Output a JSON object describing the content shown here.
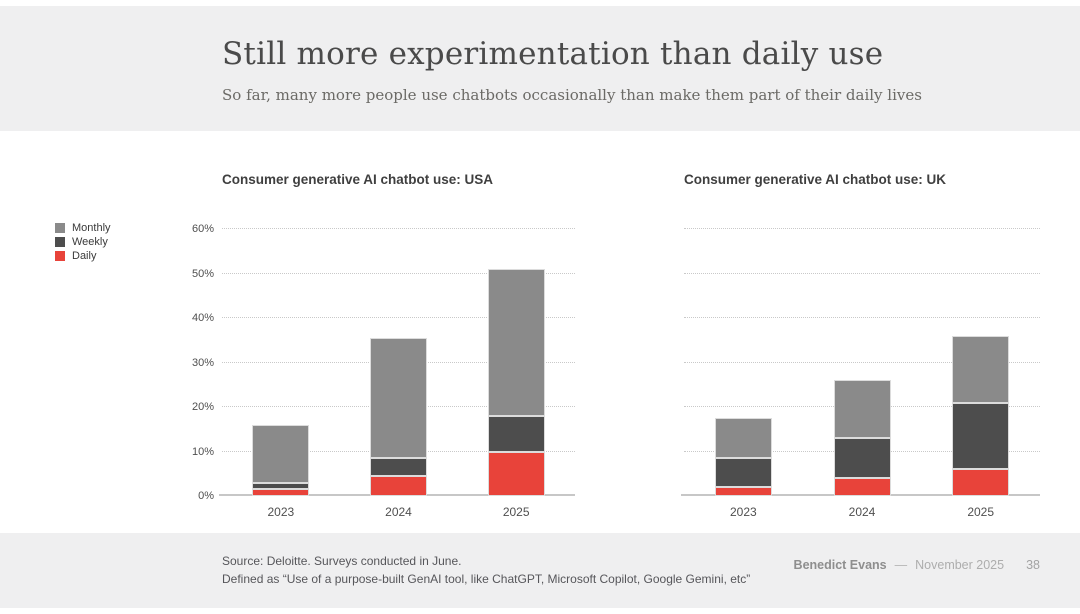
{
  "header": {
    "title": "Still more experimentation than daily use",
    "subtitle": "So far, many more people use chatbots occasionally than make them part of their daily lives"
  },
  "legend": {
    "items": [
      {
        "label": "Monthly",
        "color": "#8a8a8a"
      },
      {
        "label": "Weekly",
        "color": "#4d4d4d"
      },
      {
        "label": "Daily",
        "color": "#e8433a"
      }
    ]
  },
  "chart_data": [
    {
      "id": "usa",
      "type": "bar",
      "stacked": true,
      "title": "Consumer generative AI chatbot use: USA",
      "categories": [
        "2023",
        "2024",
        "2025"
      ],
      "series": [
        {
          "name": "Daily",
          "color": "#e8433a",
          "values": [
            1.5,
            4.5,
            10
          ]
        },
        {
          "name": "Weekly",
          "color": "#4d4d4d",
          "values": [
            1.5,
            4,
            8
          ]
        },
        {
          "name": "Monthly",
          "color": "#8a8a8a",
          "values": [
            13,
            27,
            33
          ]
        }
      ],
      "totals": [
        16,
        35.5,
        51
      ],
      "ylim": [
        0,
        60
      ],
      "yticks": [
        0,
        10,
        20,
        30,
        40,
        50,
        60
      ],
      "y_unit": "%",
      "show_y_labels": true,
      "grid": "horizontal-dotted",
      "legend_position": "left-of-chart"
    },
    {
      "id": "uk",
      "type": "bar",
      "stacked": true,
      "title": "Consumer generative AI chatbot use: UK",
      "categories": [
        "2023",
        "2024",
        "2025"
      ],
      "series": [
        {
          "name": "Daily",
          "color": "#e8433a",
          "values": [
            2,
            4,
            6
          ]
        },
        {
          "name": "Weekly",
          "color": "#4d4d4d",
          "values": [
            6.5,
            9,
            15
          ]
        },
        {
          "name": "Monthly",
          "color": "#8a8a8a",
          "values": [
            9,
            13,
            15
          ]
        }
      ],
      "totals": [
        17.5,
        26,
        36
      ],
      "ylim": [
        0,
        60
      ],
      "yticks": [
        0,
        10,
        20,
        30,
        40,
        50,
        60
      ],
      "y_unit": "%",
      "show_y_labels": false,
      "grid": "horizontal-dotted",
      "legend_position": "shared"
    }
  ],
  "footer": {
    "source_line1": "Source: Deloitte. Surveys conducted in June.",
    "source_line2": "Defined as “Use of a purpose-built GenAI tool, like ChatGPT, Microsoft Copilot, Google Gemini, etc”",
    "author": "Benedict Evans",
    "separator": "—",
    "date": "November 2025",
    "page_number": "38"
  }
}
